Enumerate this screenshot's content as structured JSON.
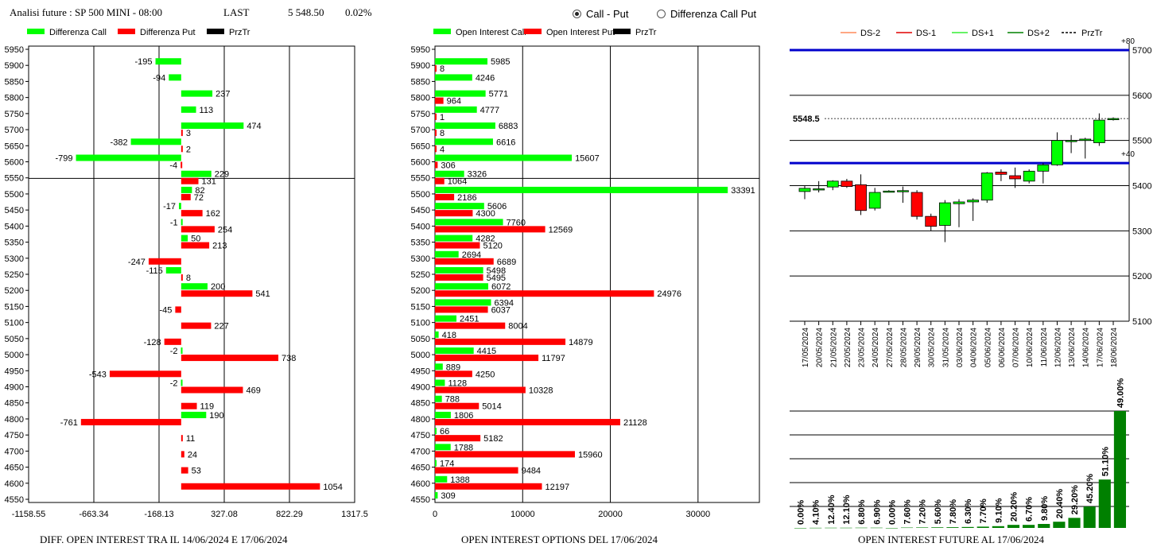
{
  "header": {
    "title": "Analisi future : SP 500 MINI - 08:00",
    "last_label": "LAST",
    "last_value": "5 548.50",
    "change": "0.02%"
  },
  "radio": {
    "options": [
      {
        "label": "Call - Put",
        "selected": true
      },
      {
        "label": "Differenza Call Put",
        "selected": false
      }
    ]
  },
  "colors": {
    "call": "#00ff00",
    "put": "#ff0000",
    "price": "#000000",
    "blue": "#0000cc",
    "darkgreen": "#008000"
  },
  "chart_data": [
    {
      "type": "bar",
      "orientation": "horizontal",
      "legend": [
        "Differenza Call",
        "Differenza Put",
        "PrzTr"
      ],
      "caption": "DIFF. OPEN INTEREST TRA IL 14/06/2024 E 17/06/2024",
      "strikes": [
        5950,
        5900,
        5850,
        5800,
        5750,
        5700,
        5650,
        5600,
        5550,
        5500,
        5450,
        5400,
        5350,
        5300,
        5250,
        5200,
        5150,
        5100,
        5050,
        5000,
        4950,
        4900,
        4850,
        4800,
        4750,
        4700,
        4650,
        4600,
        4550
      ],
      "series": [
        {
          "name": "Differenza Call",
          "values": [
            null,
            -195,
            -94,
            237,
            113,
            474,
            -382,
            -799,
            229,
            82,
            -17,
            -1,
            50,
            null,
            -115,
            200,
            null,
            null,
            null,
            -2,
            null,
            -2,
            null,
            190,
            null,
            null,
            null,
            null,
            null
          ]
        },
        {
          "name": "Differenza Put",
          "values": [
            null,
            null,
            null,
            null,
            null,
            3,
            2,
            -4,
            131,
            72,
            162,
            254,
            213,
            -247,
            8,
            541,
            -45,
            227,
            -128,
            738,
            -543,
            469,
            119,
            -761,
            11,
            24,
            53,
            1054,
            null
          ]
        }
      ],
      "price_level": 5548.5,
      "xticks": [
        "-1158.55",
        "-663.34",
        "-168.13",
        "327.08",
        "822.29",
        "1317.5"
      ],
      "xlim": [
        -1158.55,
        1317.5
      ]
    },
    {
      "type": "bar",
      "orientation": "horizontal",
      "legend": [
        "Open Interest Call",
        "Open Interest Put",
        "PrzTr"
      ],
      "caption": "OPEN INTEREST OPTIONS DEL 17/06/2024",
      "strikes": [
        5950,
        5900,
        5850,
        5800,
        5750,
        5700,
        5650,
        5600,
        5550,
        5500,
        5450,
        5400,
        5350,
        5300,
        5250,
        5200,
        5150,
        5100,
        5050,
        5000,
        4950,
        4900,
        4850,
        4800,
        4750,
        4700,
        4650,
        4600,
        4550
      ],
      "series": [
        {
          "name": "Open Interest Call",
          "values": [
            null,
            5985,
            4246,
            5771,
            4777,
            6883,
            6616,
            15607,
            3326,
            33391,
            5606,
            7760,
            4282,
            2694,
            5498,
            6072,
            6394,
            2451,
            418,
            4415,
            889,
            1128,
            788,
            1806,
            66,
            1788,
            174,
            1388,
            309
          ]
        },
        {
          "name": "Open Interest Put",
          "values": [
            null,
            8,
            null,
            964,
            1,
            8,
            4,
            306,
            1064,
            2186,
            4300,
            12569,
            5120,
            6689,
            5495,
            24976,
            6037,
            8004,
            14879,
            11797,
            4250,
            10328,
            5014,
            21128,
            5182,
            15960,
            9484,
            12197,
            null
          ]
        }
      ],
      "price_level": 5548.5,
      "xticks": [
        "0",
        "10000",
        "20000",
        "30000"
      ],
      "xlim": [
        0,
        37000
      ]
    },
    {
      "type": "candlestick",
      "legend": [
        "DS-2",
        "DS-1",
        "DS+1",
        "DS+2",
        "PrzTr"
      ],
      "dates": [
        "17/05/2024",
        "20/05/2024",
        "21/05/2024",
        "22/05/2024",
        "23/05/2024",
        "24/05/2024",
        "27/05/2024",
        "28/05/2024",
        "29/05/2024",
        "30/05/2024",
        "31/05/2024",
        "03/06/2024",
        "04/06/2024",
        "05/06/2024",
        "06/06/2024",
        "07/06/2024",
        "10/06/2024",
        "11/06/2024",
        "12/06/2024",
        "13/06/2024",
        "14/06/2024",
        "17/06/2024",
        "18/06/2024"
      ],
      "candles": [
        {
          "o": 5387,
          "h": 5400,
          "l": 5370,
          "c": 5394
        },
        {
          "o": 5392,
          "h": 5410,
          "l": 5385,
          "c": 5393
        },
        {
          "o": 5397,
          "h": 5412,
          "l": 5390,
          "c": 5410
        },
        {
          "o": 5410,
          "h": 5415,
          "l": 5395,
          "c": 5398
        },
        {
          "o": 5402,
          "h": 5425,
          "l": 5335,
          "c": 5345
        },
        {
          "o": 5350,
          "h": 5395,
          "l": 5345,
          "c": 5385
        },
        {
          "o": 5388,
          "h": 5390,
          "l": 5386,
          "c": 5388
        },
        {
          "o": 5388,
          "h": 5398,
          "l": 5362,
          "c": 5389
        },
        {
          "o": 5385,
          "h": 5390,
          "l": 5325,
          "c": 5332
        },
        {
          "o": 5332,
          "h": 5338,
          "l": 5300,
          "c": 5310
        },
        {
          "o": 5312,
          "h": 5368,
          "l": 5275,
          "c": 5362
        },
        {
          "o": 5360,
          "h": 5370,
          "l": 5308,
          "c": 5364
        },
        {
          "o": 5364,
          "h": 5372,
          "l": 5322,
          "c": 5368
        },
        {
          "o": 5368,
          "h": 5430,
          "l": 5362,
          "c": 5428
        },
        {
          "o": 5430,
          "h": 5436,
          "l": 5410,
          "c": 5425
        },
        {
          "o": 5422,
          "h": 5440,
          "l": 5395,
          "c": 5415
        },
        {
          "o": 5410,
          "h": 5436,
          "l": 5405,
          "c": 5432
        },
        {
          "o": 5432,
          "h": 5450,
          "l": 5405,
          "c": 5446
        },
        {
          "o": 5446,
          "h": 5518,
          "l": 5444,
          "c": 5500
        },
        {
          "o": 5498,
          "h": 5512,
          "l": 5472,
          "c": 5500
        },
        {
          "o": 5500,
          "h": 5506,
          "l": 5460,
          "c": 5503
        },
        {
          "o": 5495,
          "h": 5560,
          "l": 5488,
          "c": 5545
        },
        {
          "o": 5548.5,
          "h": 5551,
          "l": 5544,
          "c": 5548.5
        }
      ],
      "last_price": "5548.5",
      "blue_levels": [
        5700,
        5450
      ],
      "blue_labels": [
        "+80",
        "+40"
      ],
      "yticks": [
        "5700",
        "5600",
        "5500",
        "5400",
        "5300",
        "5200",
        "5100"
      ],
      "ylim": [
        5100,
        5700
      ]
    },
    {
      "type": "bar",
      "caption": "OPEN INTEREST FUTURE AL 17/06/2024",
      "labels": [
        "0.00%",
        "4.10%",
        "12.40%",
        "12.10%",
        "6.80%",
        "6.90%",
        "0.00%",
        "7.60%",
        "7.20%",
        "5.60%",
        "7.80%",
        "6.30%",
        "7.70%",
        "9.10%",
        "20.20%",
        "6.70%",
        "9.80%",
        "20.40%",
        "29.20%",
        "45.20%",
        "51.10%",
        "49.00%"
      ],
      "values": [
        0,
        0.1,
        0.15,
        0.15,
        0.2,
        0.2,
        0,
        0.3,
        0.4,
        0.5,
        0.6,
        0.8,
        1.1,
        1.5,
        2.6,
        2.6,
        3.4,
        5.3,
        8.6,
        18.3,
        41.4,
        100
      ]
    }
  ]
}
